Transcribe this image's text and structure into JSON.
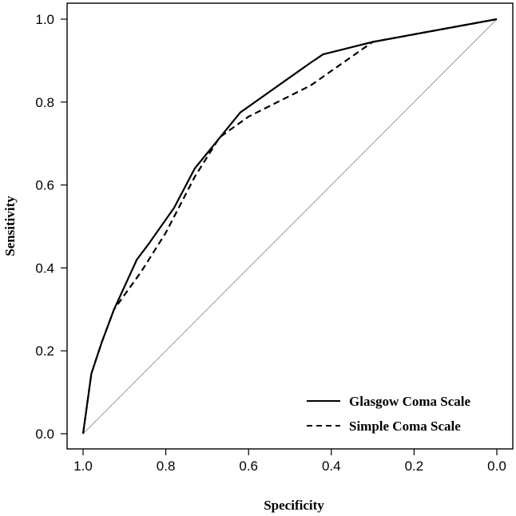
{
  "chart_data": {
    "type": "line",
    "xlabel": "Specificity",
    "ylabel": "Sensitivity",
    "xlim": [
      1.0,
      0.0
    ],
    "ylim": [
      0.0,
      1.0
    ],
    "x_reversed": true,
    "x_ticks": [
      "1.0",
      "0.8",
      "0.6",
      "0.4",
      "0.2",
      "0.0"
    ],
    "y_ticks": [
      "0.0",
      "0.2",
      "0.4",
      "0.6",
      "0.8",
      "1.0"
    ],
    "legend_position": "bottom-right",
    "reference_line": {
      "from": [
        1.0,
        0.0
      ],
      "to": [
        0.0,
        1.0
      ],
      "color": "#9a9a9a"
    },
    "series": [
      {
        "name": "Glasgow Coma Scale",
        "style": "solid",
        "x": [
          1.0,
          0.98,
          0.955,
          0.925,
          0.87,
          0.84,
          0.78,
          0.73,
          0.62,
          0.45,
          0.42,
          0.3,
          0.0
        ],
        "y": [
          0.0,
          0.145,
          0.22,
          0.3,
          0.42,
          0.46,
          0.545,
          0.64,
          0.775,
          0.895,
          0.915,
          0.945,
          1.0
        ]
      },
      {
        "name": "Simple Coma Scale",
        "style": "dashed",
        "x": [
          1.0,
          0.98,
          0.955,
          0.925,
          0.86,
          0.8,
          0.73,
          0.67,
          0.6,
          0.45,
          0.3,
          0.0
        ],
        "y": [
          0.0,
          0.145,
          0.22,
          0.3,
          0.39,
          0.485,
          0.62,
          0.715,
          0.765,
          0.84,
          0.945,
          1.0
        ]
      }
    ]
  }
}
